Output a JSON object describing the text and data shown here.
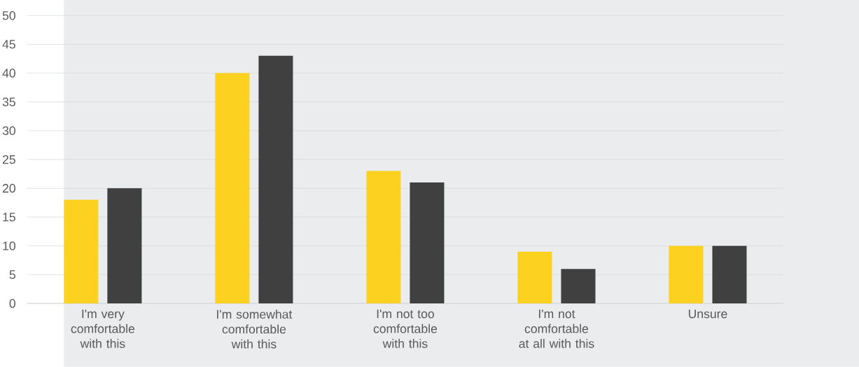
{
  "chart_data": {
    "type": "bar",
    "categories": [
      "I'm very comfortable with this",
      "I'm somewhat comfortable with this",
      "I'm not too comfortable with this",
      "I'm not comfortable at all with this",
      "Unsure"
    ],
    "series": [
      {
        "color": "#fcd11f",
        "values": [
          18,
          40,
          23,
          9,
          10
        ]
      },
      {
        "color": "#404040",
        "values": [
          20,
          43,
          21,
          6,
          10
        ]
      }
    ],
    "ylim": [
      0,
      50
    ],
    "yticks": [
      0,
      5,
      10,
      15,
      20,
      25,
      30,
      35,
      40,
      45,
      50
    ],
    "grid": "y"
  }
}
